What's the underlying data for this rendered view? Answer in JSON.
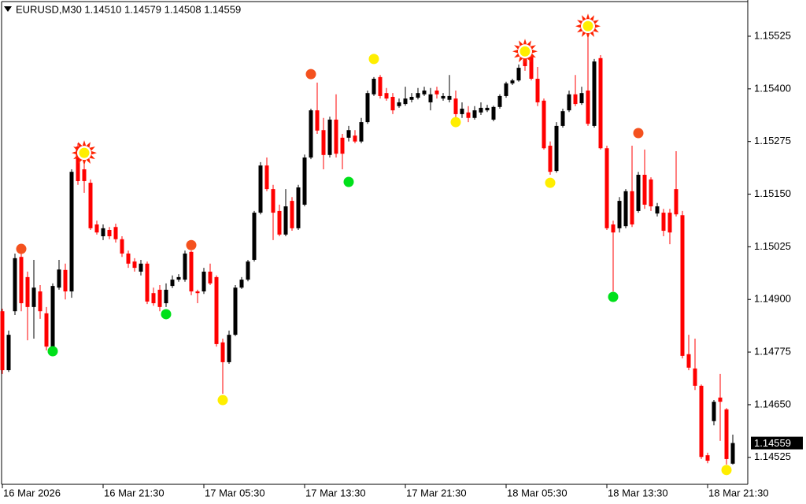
{
  "chart_data": {
    "type": "candlestick",
    "header": "EURUSD,M30  1.14510 1.14579 1.14508 1.14559",
    "categories": [
      "16 Mar 2026",
      null,
      null,
      null,
      null,
      null,
      null,
      null,
      null,
      null,
      null,
      null,
      null,
      null,
      null,
      null,
      "16 Mar 21:30",
      null,
      null,
      null,
      null,
      null,
      null,
      null,
      null,
      null,
      null,
      null,
      null,
      null,
      null,
      null,
      "17 Mar 05:30",
      null,
      null,
      null,
      null,
      null,
      null,
      null,
      null,
      null,
      null,
      null,
      null,
      null,
      null,
      null,
      "17 Mar 13:30",
      null,
      null,
      null,
      null,
      null,
      null,
      null,
      null,
      null,
      null,
      null,
      null,
      null,
      null,
      null,
      "17 Mar 21:30",
      null,
      null,
      null,
      null,
      null,
      null,
      null,
      null,
      null,
      null,
      null,
      null,
      null,
      null,
      null,
      "18 Mar 05:30",
      null,
      null,
      null,
      null,
      null,
      null,
      null,
      null,
      null,
      null,
      null,
      null,
      null,
      null,
      null,
      "18 Mar 13:30",
      null,
      null,
      null,
      null,
      null,
      null,
      null,
      null,
      null,
      null,
      null,
      null,
      null,
      null,
      null,
      "18 Mar 21:30",
      null,
      null,
      null,
      null
    ],
    "open": [
      1.14872,
      1.14732,
      1.14872,
      1.15001,
      1.14953,
      1.14882,
      1.14919,
      1.14867,
      1.14788,
      1.14928,
      1.1497,
      1.14919,
      1.15263,
      1.15209,
      1.15177,
      1.15078,
      1.1505,
      1.15065,
      1.15072,
      1.15043,
      1.15009,
      1.1499,
      1.14966,
      1.14985,
      1.14915,
      1.14923,
      1.14891,
      1.14932,
      1.14947,
      1.14947,
      1.15013,
      1.14919,
      1.14919,
      1.14966,
      1.14953,
      1.14798,
      1.14751,
      1.14816,
      1.14928,
      1.14947,
      1.14994,
      1.15106,
      1.15218,
      1.15162,
      1.1511,
      1.15054,
      1.15134,
      1.15069,
      1.15125,
      1.15237,
      1.15349,
      1.15302,
      1.15243,
      1.15327,
      1.15284,
      1.15284,
      1.15289,
      1.15275,
      1.15321,
      1.15387,
      1.15428,
      1.1539,
      1.15381,
      1.15359,
      1.15364,
      1.15374,
      1.15379,
      1.15387,
      1.15368,
      1.15396,
      1.15377,
      1.15374,
      1.15377,
      1.1534,
      1.15344,
      1.15331,
      1.15344,
      1.15349,
      1.15327,
      1.15357,
      1.15383,
      1.15413,
      1.1542,
      1.1548,
      1.15476,
      1.15424,
      1.15372,
      1.15265,
      1.15205,
      1.15312,
      1.15349,
      1.15387,
      1.15366,
      1.15396,
      1.15312,
      1.15473,
      1.15259,
      1.15078,
      1.15069,
      1.15074,
      1.15157,
      1.1511,
      1.15196,
      1.15185,
      1.15104,
      1.15106,
      1.15106,
      1.15162,
      1.151,
      1.1477,
      1.14736,
      1.14695,
      1.1453,
      1.14611,
      1.14667,
      1.14639,
      1.1451
    ],
    "high": [
      1.14878,
      1.14826,
      1.15009,
      1.15016,
      1.14966,
      1.14994,
      1.14934,
      1.14882,
      1.14938,
      1.14994,
      1.14985,
      1.15209,
      1.15271,
      1.15237,
      1.15185,
      1.15087,
      1.15078,
      1.15072,
      1.1508,
      1.1505,
      1.15016,
      1.14998,
      1.14994,
      1.1499,
      1.14928,
      1.14934,
      1.14938,
      1.14957,
      1.1496,
      1.15016,
      1.15016,
      1.14923,
      1.14975,
      1.14985,
      1.14957,
      1.14807,
      1.14826,
      1.14934,
      1.14953,
      1.14994,
      1.1511,
      1.15226,
      1.15237,
      1.15172,
      1.15125,
      1.15162,
      1.15143,
      1.15172,
      1.15244,
      1.15353,
      1.15415,
      1.15331,
      1.15334,
      1.15387,
      1.15293,
      1.15312,
      1.15302,
      1.15331,
      1.15396,
      1.15428,
      1.15433,
      1.15402,
      1.1539,
      1.15377,
      1.15405,
      1.1539,
      1.15402,
      1.15405,
      1.15402,
      1.15405,
      1.1539,
      1.15433,
      1.15396,
      1.15368,
      1.15359,
      1.15359,
      1.15368,
      1.15362,
      1.1536,
      1.15387,
      1.15417,
      1.15424,
      1.15458,
      1.15499,
      1.15484,
      1.15452,
      1.15377,
      1.15275,
      1.15321,
      1.15353,
      1.15396,
      1.15433,
      1.15405,
      1.15527,
      1.15471,
      1.1548,
      1.15265,
      1.15087,
      1.15143,
      1.15162,
      1.15265,
      1.15203,
      1.15256,
      1.1519,
      1.15129,
      1.15115,
      1.15115,
      1.15252,
      1.1511,
      1.14816,
      1.14807,
      1.14698,
      1.14536,
      1.14661,
      1.14723,
      1.14642,
      1.14579
    ],
    "low": [
      1.14723,
      1.14728,
      1.14863,
      1.14872,
      1.14803,
      1.14807,
      1.14854,
      1.14779,
      1.14777,
      1.14923,
      1.149,
      1.14904,
      1.15172,
      1.15153,
      1.15065,
      1.15054,
      1.15041,
      1.15043,
      1.15035,
      1.15001,
      1.14975,
      1.14966,
      1.14957,
      1.14889,
      1.14885,
      1.14872,
      1.14882,
      1.14927,
      1.14942,
      1.14942,
      1.1491,
      1.14891,
      1.14913,
      1.14934,
      1.14788,
      1.14676,
      1.14747,
      1.14813,
      1.14925,
      1.14943,
      1.1499,
      1.15102,
      1.15157,
      1.15041,
      1.1505,
      1.1505,
      1.15063,
      1.15065,
      1.15121,
      1.15233,
      1.15293,
      1.15209,
      1.15237,
      1.15237,
      1.15209,
      1.15275,
      1.15271,
      1.15271,
      1.15317,
      1.15383,
      1.15377,
      1.15372,
      1.1534,
      1.15355,
      1.1536,
      1.15368,
      1.15375,
      1.15383,
      1.15349,
      1.15377,
      1.15372,
      1.15368,
      1.15331,
      1.15331,
      1.15321,
      1.15327,
      1.15338,
      1.15345,
      1.15323,
      1.15353,
      1.15379,
      1.15409,
      1.15417,
      1.15443,
      1.1542,
      1.15359,
      1.15256,
      1.15196,
      1.15201,
      1.15308,
      1.15345,
      1.15359,
      1.15362,
      1.15312,
      1.15308,
      1.15256,
      1.15065,
      1.14919,
      1.15059,
      1.15069,
      1.15072,
      1.15106,
      1.15115,
      1.1511,
      1.15097,
      1.1505,
      1.15031,
      1.15097,
      1.1476,
      1.14732,
      1.14685,
      1.14521,
      1.14511,
      1.14601,
      1.14564,
      1.14508,
      1.14508
    ],
    "close": [
      1.14732,
      1.14816,
      1.14998,
      1.14891,
      1.14882,
      1.14928,
      1.14872,
      1.14788,
      1.14932,
      1.14971,
      1.14919,
      1.15203,
      1.15181,
      1.15181,
      1.15069,
      1.15059,
      1.15069,
      1.1505,
      1.15043,
      1.15009,
      1.14985,
      1.14975,
      1.14985,
      1.14895,
      1.14891,
      1.14882,
      1.14923,
      1.14947,
      1.14953,
      1.15009,
      1.14919,
      1.14915,
      1.14966,
      1.14938,
      1.14794,
      1.14751,
      1.14816,
      1.14928,
      1.14947,
      1.1499,
      1.15106,
      1.15218,
      1.15162,
      1.15106,
      1.15054,
      1.15121,
      1.15069,
      1.15166,
      1.15237,
      1.15349,
      1.15301,
      1.15243,
      1.15327,
      1.15246,
      1.15246,
      1.15302,
      1.15275,
      1.15321,
      1.1539,
      1.15424,
      1.15383,
      1.15377,
      1.15349,
      1.15368,
      1.15377,
      1.15381,
      1.1539,
      1.15396,
      1.15387,
      1.15387,
      1.15383,
      1.15383,
      1.1534,
      1.15353,
      1.15331,
      1.15349,
      1.15355,
      1.15355,
      1.15357,
      1.15383,
      1.15413,
      1.1542,
      1.1545,
      1.15454,
      1.15424,
      1.15368,
      1.15259,
      1.15203,
      1.15312,
      1.15347,
      1.15387,
      1.15364,
      1.1539,
      1.15317,
      1.15465,
      1.15259,
      1.15069,
      1.15059,
      1.15134,
      1.15157,
      1.15078,
      1.15196,
      1.15125,
      1.15121,
      1.15121,
      1.15063,
      1.15059,
      1.15102,
      1.14766,
      1.14738,
      1.14695,
      1.14526,
      1.14517,
      1.14657,
      1.14657,
      1.14521,
      1.14559
    ],
    "up_color": "#000000",
    "down_color": "#ff0000",
    "ylim": [
      1.14461,
      1.15611
    ],
    "yticks": [
      1.15525,
      {
        "value": 1.154,
        "label": "1.15400"
      },
      1.15275,
      {
        "value": 1.1515,
        "label": "1.15150"
      },
      1.15025,
      {
        "value": 1.149,
        "label": "1.14900"
      },
      1.14775,
      {
        "value": 1.1465,
        "label": "1.14650"
      },
      1.14525
    ],
    "signals": [
      {
        "x": 3,
        "y": 1.1502,
        "color": "#f4511e",
        "shape": "dot"
      },
      {
        "x": 8,
        "y": 1.14777,
        "color": "#00e01a",
        "shape": "dot"
      },
      {
        "x": 13,
        "y": 1.15248,
        "color": "#ffee00",
        "shape": "star"
      },
      {
        "x": 26,
        "y": 1.14865,
        "color": "#00e01a",
        "shape": "dot"
      },
      {
        "x": 30,
        "y": 1.15029,
        "color": "#f4511e",
        "shape": "dot"
      },
      {
        "x": 35,
        "y": 1.14661,
        "color": "#ffee00",
        "shape": "dot"
      },
      {
        "x": 49,
        "y": 1.15435,
        "color": "#f4511e",
        "shape": "dot"
      },
      {
        "x": 55,
        "y": 1.15179,
        "color": "#00e01a",
        "shape": "dot"
      },
      {
        "x": 59,
        "y": 1.15471,
        "color": "#ffee00",
        "shape": "dot"
      },
      {
        "x": 72,
        "y": 1.15321,
        "color": "#ffee00",
        "shape": "dot"
      },
      {
        "x": 83,
        "y": 1.15489,
        "color": "#ffee00",
        "shape": "star"
      },
      {
        "x": 87,
        "y": 1.15177,
        "color": "#ffee00",
        "shape": "dot"
      },
      {
        "x": 93,
        "y": 1.15549,
        "color": "#ffee00",
        "shape": "star"
      },
      {
        "x": 97,
        "y": 1.14906,
        "color": "#00e01a",
        "shape": "dot"
      },
      {
        "x": 101,
        "y": 1.15295,
        "color": "#f4511e",
        "shape": "dot"
      },
      {
        "x": 115,
        "y": 1.14495,
        "color": "#ffee00",
        "shape": "dot"
      }
    ]
  }
}
